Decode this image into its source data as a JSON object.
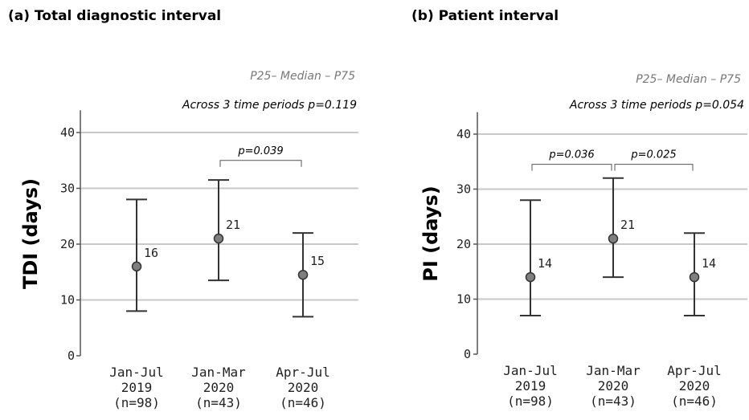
{
  "chart_data": [
    {
      "type": "errorbar",
      "title": "(a) Total diagnostic interval",
      "legend_text": "P25– Median – P75",
      "overall_test": "Across 3 time periods p=0.119",
      "ylabel": "TDI (days)",
      "ylim": [
        0,
        44
      ],
      "yticks": [
        0,
        10,
        20,
        30,
        40
      ],
      "grid": true,
      "categories": [
        {
          "lines": [
            "Jan-Jul",
            "2019",
            "(n=98)"
          ]
        },
        {
          "lines": [
            "Jan-Mar",
            "2020",
            "(n=43)"
          ]
        },
        {
          "lines": [
            "Apr-Jul",
            "2020",
            "(n=46)"
          ]
        }
      ],
      "points": [
        {
          "median": 16,
          "p25": 8,
          "p75": 28,
          "label": "16"
        },
        {
          "median": 21,
          "p25": 13.5,
          "p75": 31.5,
          "label": "21"
        },
        {
          "median": 14.5,
          "p25": 7,
          "p75": 22,
          "label": "15"
        }
      ],
      "comparisons": [
        {
          "from": 1,
          "to": 2,
          "y": 35,
          "text": "p=0.039"
        }
      ]
    },
    {
      "type": "errorbar",
      "title": "(b) Patient interval",
      "legend_text": "P25– Median – P75",
      "overall_test": "Across 3 time periods p=0.054",
      "ylabel": "PI (days)",
      "ylim": [
        0,
        44
      ],
      "yticks": [
        0,
        10,
        20,
        30,
        40
      ],
      "grid": true,
      "categories": [
        {
          "lines": [
            "Jan-Jul",
            "2019",
            "(n=98)"
          ]
        },
        {
          "lines": [
            "Jan-Mar",
            "2020",
            "(n=43)"
          ]
        },
        {
          "lines": [
            "Apr-Jul",
            "2020",
            "(n=46)"
          ]
        }
      ],
      "points": [
        {
          "median": 14,
          "p25": 7,
          "p75": 28,
          "label": "14"
        },
        {
          "median": 21,
          "p25": 14,
          "p75": 32,
          "label": "21"
        },
        {
          "median": 14,
          "p25": 7,
          "p75": 22,
          "label": "14"
        }
      ],
      "comparisons": [
        {
          "from": 0,
          "to": 1,
          "y": 34.5,
          "text": "p=0.036"
        },
        {
          "from": 1,
          "to": 2,
          "y": 34.5,
          "text": "p=0.025"
        }
      ]
    }
  ]
}
